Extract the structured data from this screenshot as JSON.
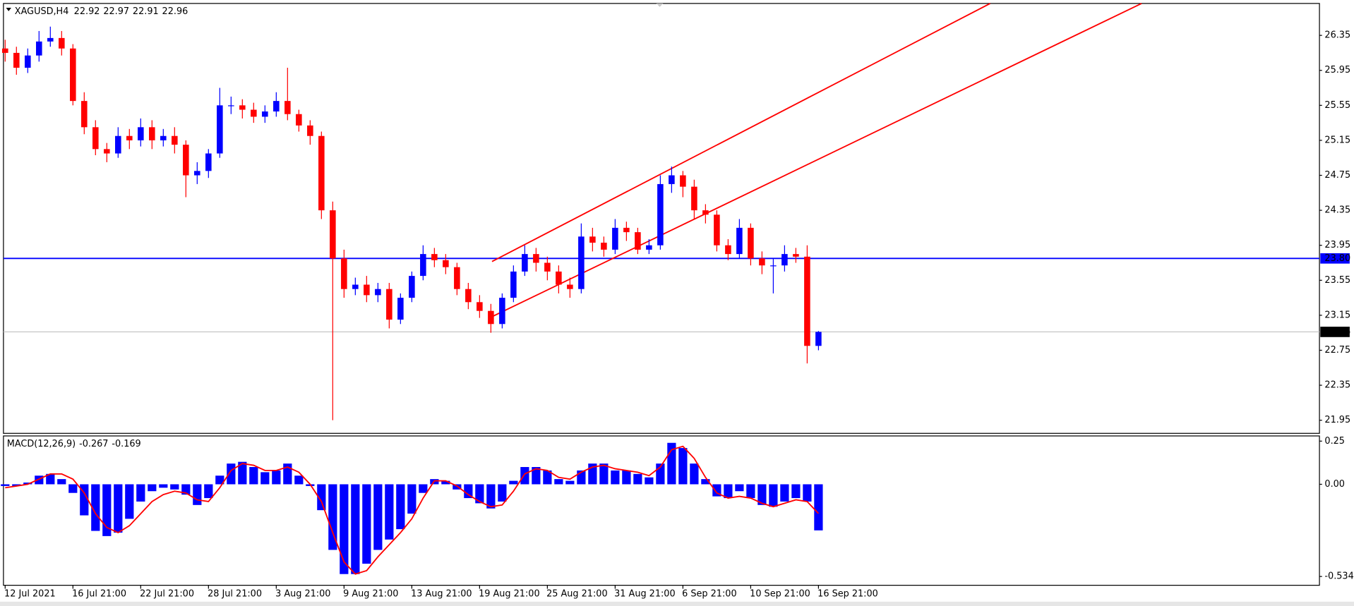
{
  "chart_data": [
    {
      "type": "candlestick",
      "symbol": "XAGUSD,H4",
      "header_ohlc": [
        22.92,
        22.97,
        22.91,
        22.96
      ],
      "categories": [
        "12 Jul 2021",
        null,
        null,
        null,
        null,
        null,
        "16 Jul 21:00",
        null,
        null,
        null,
        null,
        null,
        "22 Jul 21:00",
        null,
        null,
        null,
        null,
        null,
        "28 Jul 21:00",
        null,
        null,
        null,
        null,
        null,
        "3 Aug 21:00",
        null,
        null,
        null,
        null,
        null,
        "9 Aug 21:00",
        null,
        null,
        null,
        null,
        null,
        "13 Aug 21:00",
        null,
        null,
        null,
        null,
        null,
        "19 Aug 21:00",
        null,
        null,
        null,
        null,
        null,
        "25 Aug 21:00",
        null,
        null,
        null,
        null,
        null,
        "31 Aug 21:00",
        null,
        null,
        null,
        null,
        null,
        "6 Sep 21:00",
        null,
        null,
        null,
        null,
        null,
        "10 Sep 21:00",
        null,
        null,
        null,
        null,
        null,
        "16 Sep 21:00"
      ],
      "open": [
        26.2,
        26.15,
        25.98,
        26.12,
        26.28,
        26.32,
        26.2,
        25.6,
        25.3,
        25.05,
        25.0,
        25.2,
        25.15,
        25.3,
        25.15,
        25.2,
        25.1,
        24.75,
        24.8,
        25.0,
        25.55,
        25.55,
        25.5,
        25.42,
        25.48,
        25.6,
        25.45,
        25.32,
        25.2,
        24.35,
        23.8,
        23.45,
        23.5,
        23.38,
        23.45,
        23.1,
        23.35,
        23.6,
        23.85,
        23.78,
        23.7,
        23.45,
        23.3,
        23.2,
        23.05,
        23.35,
        23.65,
        23.85,
        23.75,
        23.65,
        23.5,
        23.45,
        24.05,
        23.98,
        23.9,
        24.15,
        24.1,
        23.9,
        23.95,
        24.65,
        24.75,
        24.62,
        24.35,
        24.3,
        23.95,
        23.85,
        24.15,
        23.8,
        23.72,
        23.72,
        23.85,
        23.82,
        22.8
      ],
      "high": [
        26.3,
        26.22,
        26.2,
        26.4,
        26.45,
        26.4,
        26.25,
        25.7,
        25.38,
        25.12,
        25.3,
        25.28,
        25.4,
        25.38,
        25.28,
        25.3,
        25.15,
        24.9,
        25.05,
        25.75,
        25.65,
        25.62,
        25.58,
        25.55,
        25.7,
        25.98,
        25.5,
        25.38,
        25.25,
        24.45,
        23.9,
        23.58,
        23.6,
        23.52,
        23.52,
        23.4,
        23.65,
        23.95,
        23.92,
        23.85,
        23.75,
        23.52,
        23.38,
        23.28,
        23.4,
        23.72,
        23.95,
        23.92,
        23.82,
        23.72,
        23.58,
        24.2,
        24.15,
        24.05,
        24.25,
        24.22,
        24.15,
        24.02,
        24.75,
        24.85,
        24.8,
        24.7,
        24.42,
        24.35,
        24.02,
        24.25,
        24.2,
        23.88,
        23.8,
        23.95,
        23.92,
        23.95,
        22.97
      ],
      "low": [
        26.05,
        25.9,
        25.92,
        26.05,
        26.22,
        26.12,
        25.55,
        25.22,
        24.98,
        24.9,
        24.95,
        25.05,
        25.08,
        25.05,
        25.08,
        25.0,
        24.5,
        24.65,
        24.72,
        24.95,
        25.45,
        25.4,
        25.35,
        25.35,
        25.42,
        25.38,
        25.25,
        25.1,
        24.25,
        21.95,
        23.35,
        23.38,
        23.3,
        23.3,
        23.0,
        23.05,
        23.3,
        23.55,
        23.7,
        23.62,
        23.38,
        23.22,
        23.12,
        22.95,
        23.0,
        23.3,
        23.6,
        23.65,
        23.55,
        23.4,
        23.35,
        23.4,
        23.88,
        23.82,
        23.85,
        24.0,
        23.85,
        23.85,
        23.9,
        24.55,
        24.5,
        24.25,
        24.2,
        23.88,
        23.78,
        23.8,
        23.72,
        23.62,
        23.4,
        23.65,
        23.75,
        22.6,
        22.75
      ],
      "close": [
        26.15,
        25.98,
        26.12,
        26.28,
        26.32,
        26.2,
        25.6,
        25.3,
        25.05,
        25.0,
        25.2,
        25.15,
        25.3,
        25.15,
        25.2,
        25.1,
        24.75,
        24.8,
        25.0,
        25.55,
        25.55,
        25.5,
        25.42,
        25.48,
        25.6,
        25.45,
        25.32,
        25.2,
        24.35,
        23.8,
        23.45,
        23.5,
        23.38,
        23.45,
        23.1,
        23.35,
        23.6,
        23.85,
        23.78,
        23.7,
        23.45,
        23.3,
        23.2,
        23.05,
        23.35,
        23.65,
        23.85,
        23.75,
        23.65,
        23.5,
        23.45,
        24.05,
        23.98,
        23.9,
        24.15,
        24.1,
        23.9,
        23.95,
        24.65,
        24.75,
        24.62,
        24.35,
        24.3,
        23.95,
        23.85,
        24.15,
        23.8,
        23.72,
        23.72,
        23.85,
        23.82,
        22.8,
        22.96
      ],
      "up_color": "#0000ff",
      "down_color": "#ff0000",
      "xlim": [
        -0.15,
        116.35
      ],
      "ylim": [
        21.8,
        26.715
      ],
      "yticks": [
        26.35,
        25.95,
        25.55,
        25.15,
        24.75,
        24.35,
        23.95,
        23.55,
        23.15,
        22.75,
        22.35,
        21.95
      ],
      "hlines": [
        {
          "value": 23.8,
          "label": "23.80",
          "color": "#0000ff"
        }
      ],
      "last_price": {
        "value": 22.96,
        "label": "22.96"
      },
      "trendlines": [
        {
          "x": [
            43.1,
            87.2
          ],
          "y": [
            23.765,
            26.715
          ],
          "color": "#ff0000"
        },
        {
          "x": [
            43.1,
            100.6
          ],
          "y": [
            23.134,
            26.715
          ],
          "color": "#ff0000"
        }
      ]
    },
    {
      "type": "macd",
      "title": "MACD(12,26,9)",
      "macd": [
        -0.01,
        -0.01,
        0.01,
        0.05,
        0.06,
        0.03,
        -0.05,
        -0.18,
        -0.27,
        -0.3,
        -0.28,
        -0.2,
        -0.1,
        -0.04,
        -0.02,
        -0.03,
        -0.06,
        -0.12,
        -0.08,
        0.05,
        0.12,
        0.13,
        0.1,
        0.07,
        0.08,
        0.12,
        0.05,
        -0.01,
        -0.15,
        -0.38,
        -0.52,
        -0.52,
        -0.46,
        -0.38,
        -0.32,
        -0.26,
        -0.17,
        -0.05,
        0.03,
        0.02,
        -0.03,
        -0.08,
        -0.11,
        -0.14,
        -0.1,
        0.02,
        0.1,
        0.1,
        0.08,
        0.03,
        0.02,
        0.08,
        0.12,
        0.12,
        0.08,
        0.08,
        0.06,
        0.04,
        0.12,
        0.24,
        0.21,
        0.12,
        0.03,
        -0.07,
        -0.08,
        -0.04,
        -0.08,
        -0.12,
        -0.13,
        -0.1,
        -0.08,
        -0.1,
        -0.267
      ],
      "signal": [
        -0.02,
        -0.01,
        0.0,
        0.03,
        0.06,
        0.06,
        0.03,
        -0.05,
        -0.17,
        -0.25,
        -0.28,
        -0.24,
        -0.17,
        -0.1,
        -0.06,
        -0.04,
        -0.05,
        -0.09,
        -0.1,
        -0.02,
        0.08,
        0.12,
        0.11,
        0.08,
        0.08,
        0.1,
        0.07,
        0.0,
        -0.1,
        -0.28,
        -0.45,
        -0.52,
        -0.5,
        -0.42,
        -0.35,
        -0.28,
        -0.2,
        -0.08,
        0.02,
        0.02,
        -0.01,
        -0.06,
        -0.1,
        -0.13,
        -0.12,
        -0.04,
        0.06,
        0.09,
        0.08,
        0.04,
        0.03,
        0.07,
        0.1,
        0.11,
        0.09,
        0.08,
        0.07,
        0.05,
        0.1,
        0.2,
        0.22,
        0.15,
        0.04,
        -0.05,
        -0.08,
        -0.07,
        -0.08,
        -0.11,
        -0.13,
        -0.11,
        -0.09,
        -0.1,
        -0.169
      ],
      "macd_color": "#0000ff",
      "signal_color": "#ff0000",
      "ylim": [
        -0.585,
        0.28
      ],
      "yticks": [
        0.25,
        {
          "value": 0,
          "label": "0.00"
        },
        -0.534
      ]
    }
  ]
}
